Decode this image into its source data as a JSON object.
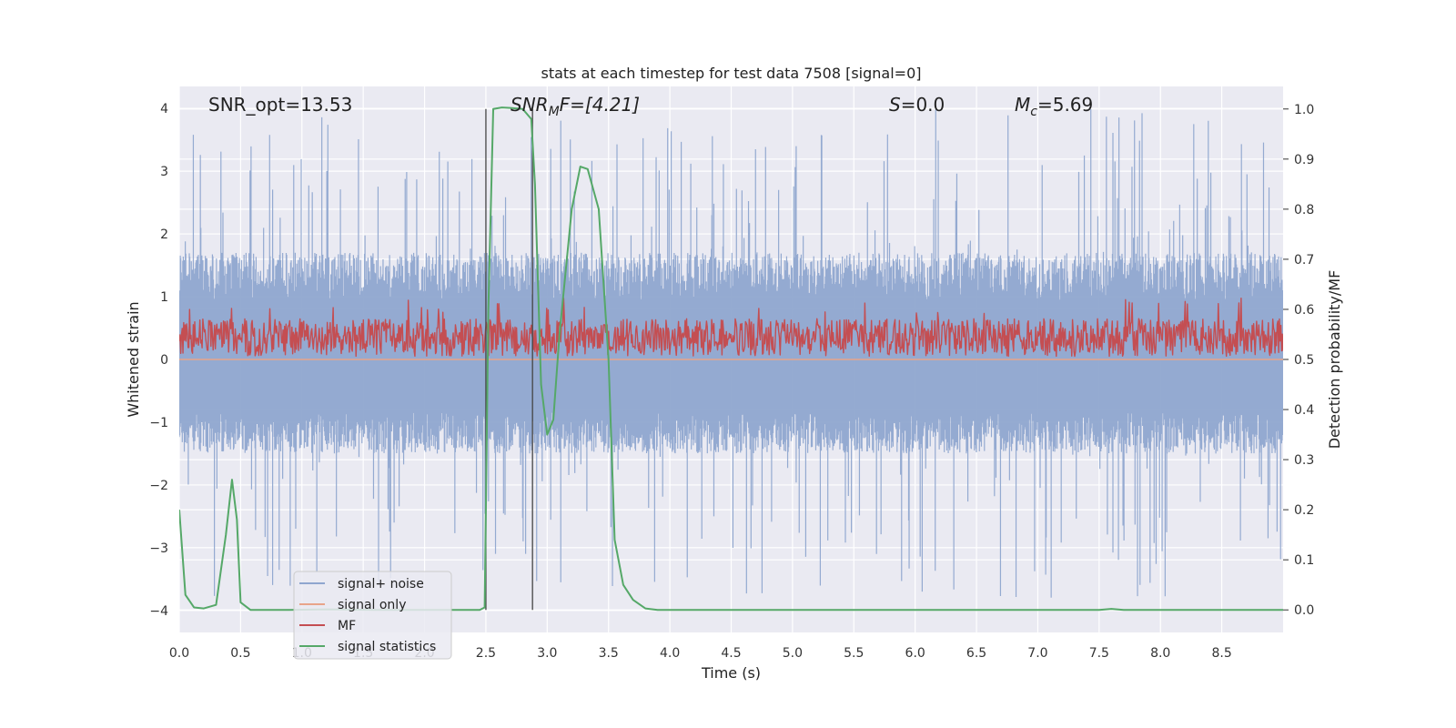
{
  "chart_data": {
    "type": "line",
    "title": "stats at each timestep for test data 7508 [signal=0]",
    "xlabel": "Time (s)",
    "ylabel": "Whitened strain",
    "y2label": "Detection probability/MF",
    "xlim": [
      0,
      9
    ],
    "ylim": [
      -4.35,
      4.35
    ],
    "y2lim": [
      -0.045,
      1.045
    ],
    "x_ticks": [
      "0.0",
      "0.5",
      "1.0",
      "1.5",
      "2.0",
      "2.5",
      "3.0",
      "3.5",
      "4.0",
      "4.5",
      "5.0",
      "5.5",
      "6.0",
      "6.5",
      "7.0",
      "7.5",
      "8.0",
      "8.5"
    ],
    "y_ticks": [
      "4",
      "3",
      "2",
      "1",
      "0",
      "−1",
      "−2",
      "−3",
      "−4"
    ],
    "y2_ticks": [
      "1.0",
      "0.9",
      "0.8",
      "0.7",
      "0.6",
      "0.5",
      "0.4",
      "0.3",
      "0.2",
      "0.1",
      "0.0"
    ],
    "grid": true,
    "legend_position": "lower-left",
    "annotations": {
      "snr_opt": "SNR_opt=13.53",
      "snr_mf_sym": "SNR",
      "snr_mf_sub": "M",
      "snr_mf_rest": "F=[4.21]",
      "s_sym": "S",
      "s_rest": "=0.0",
      "mc_sym": "M",
      "mc_sub": "c",
      "mc_rest": "=5.69"
    },
    "vertical_markers": [
      2.5,
      2.88
    ],
    "series": [
      {
        "name": "signal+ noise",
        "color": "#8fa6cf",
        "kind": "noise",
        "envelope": {
          "upper_typ": 1.7,
          "upper_peak": 4.0,
          "lower_typ": -1.5,
          "lower_peak": -3.8
        }
      },
      {
        "name": "signal only",
        "color": "#e8a48a",
        "kind": "flat",
        "value": 0
      },
      {
        "name": "MF",
        "color": "#c44e52",
        "kind": "noise",
        "envelope": {
          "low": 0.0,
          "high": 1.0,
          "mean": 0.3
        }
      },
      {
        "name": "signal statistics",
        "color": "#55a868",
        "kind": "line",
        "axis": "right",
        "x": [
          0.0,
          0.05,
          0.12,
          0.2,
          0.3,
          0.38,
          0.43,
          0.47,
          0.5,
          0.58,
          0.7,
          0.9,
          1.2,
          1.6,
          2.0,
          2.3,
          2.45,
          2.49,
          2.52,
          2.56,
          2.63,
          2.7,
          2.8,
          2.87,
          2.9,
          2.95,
          3.0,
          3.05,
          3.1,
          3.2,
          3.27,
          3.33,
          3.42,
          3.5,
          3.55,
          3.62,
          3.7,
          3.8,
          3.9,
          4.0,
          5.0,
          6.0,
          7.0,
          7.5,
          7.6,
          7.7,
          8.0,
          9.0
        ],
        "y": [
          0.2,
          0.03,
          0.005,
          0.003,
          0.01,
          0.15,
          0.26,
          0.18,
          0.015,
          0.0,
          0.0,
          0.0,
          0.001,
          0.0,
          0.0,
          0.0,
          0.0,
          0.005,
          0.6,
          1.0,
          1.003,
          1.002,
          1.0,
          0.98,
          0.85,
          0.45,
          0.35,
          0.38,
          0.55,
          0.8,
          0.885,
          0.88,
          0.8,
          0.5,
          0.14,
          0.05,
          0.02,
          0.003,
          0.0,
          0.0,
          0.0,
          0.0,
          0.0,
          0.0,
          0.002,
          0.0,
          0.0,
          0.0
        ]
      }
    ]
  }
}
